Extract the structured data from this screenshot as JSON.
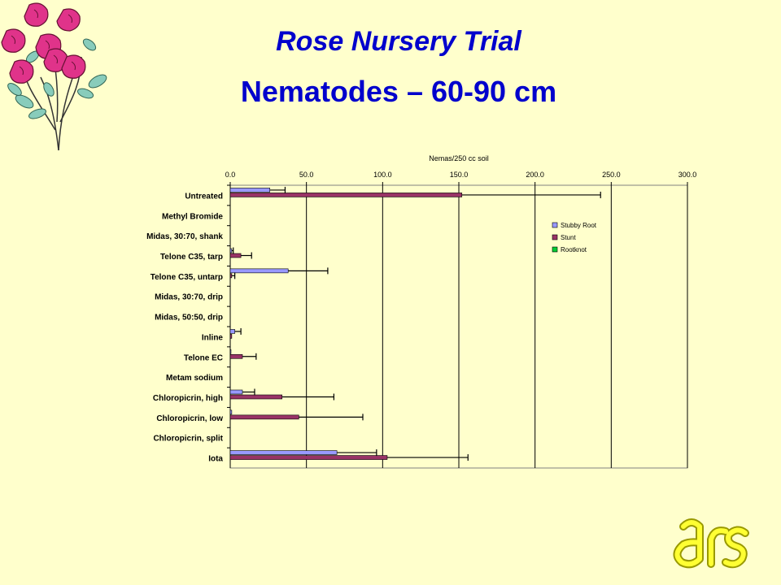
{
  "slide": {
    "title_line1": "Rose Nursery Trial",
    "title_line2": "Nematodes – 60-90 cm",
    "decoration_icon": "rose-bouquet-icon",
    "logo_icon": "ars-logo-icon"
  },
  "chart_data": {
    "type": "bar",
    "orientation": "horizontal",
    "title": "Nemas/250 cc soil",
    "xlim": [
      0,
      300
    ],
    "xticks": [
      "0.0",
      "50.0",
      "100.0",
      "150.0",
      "200.0",
      "250.0",
      "300.0"
    ],
    "x_axis_position": "top",
    "grid": true,
    "legend_position": "right",
    "categories": [
      "Untreated",
      "Methyl Bromide",
      "Midas, 30:70, shank",
      "Telone C35, tarp",
      "Telone C35, untarp",
      "Midas, 30:70, drip",
      "Midas, 50:50, drip",
      "Inline",
      "Telone EC",
      "Metam sodium",
      "Chloropicrin, high",
      "Chloropicrin, low",
      "Chloropicrin, split",
      "Iota"
    ],
    "series": [
      {
        "name": "Stubby Root",
        "color": "#9999ff",
        "values": [
          26,
          0,
          0,
          1,
          38,
          0,
          0,
          3,
          0.5,
          0,
          8,
          1,
          0,
          70
        ],
        "errors": [
          10,
          0,
          0,
          1,
          26,
          0,
          0,
          4,
          0,
          0,
          8,
          0,
          0,
          26
        ]
      },
      {
        "name": "Stunt",
        "color": "#993366",
        "values": [
          152,
          0,
          0,
          7,
          1,
          0,
          0,
          1,
          8,
          0,
          34,
          45,
          0,
          103
        ],
        "errors": [
          91,
          0,
          0,
          7,
          2,
          0,
          0,
          0,
          9,
          0,
          34,
          42,
          0,
          53
        ]
      },
      {
        "name": "Rootknot",
        "color": "#00cc33",
        "values": [
          0,
          0,
          0,
          0,
          0,
          0,
          0,
          0,
          0,
          0,
          0,
          0,
          0,
          0
        ],
        "errors": [
          0,
          0,
          0,
          0,
          0,
          0,
          0,
          0,
          0,
          0,
          0,
          0,
          0,
          0
        ]
      }
    ]
  }
}
